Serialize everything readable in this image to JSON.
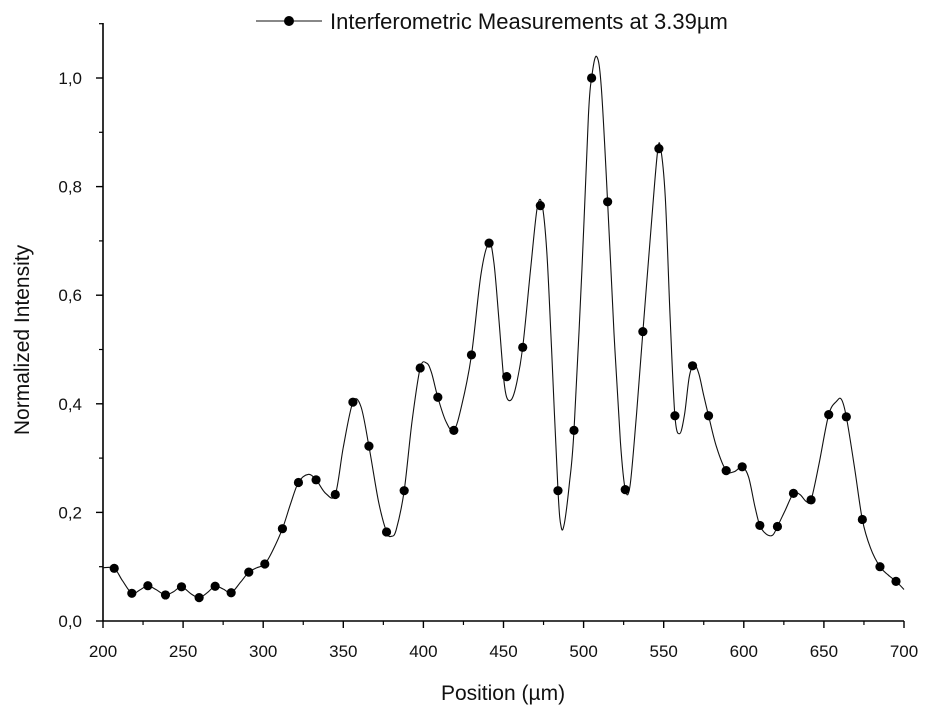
{
  "chart_data": {
    "type": "line",
    "title": "",
    "xlabel": "Position (µm)",
    "ylabel": "Normalized Intensity",
    "xlim": [
      200,
      700
    ],
    "ylim": [
      0,
      1.1
    ],
    "x_ticks": [
      200,
      250,
      300,
      350,
      400,
      450,
      500,
      550,
      600,
      650,
      700
    ],
    "x_tick_labels": [
      "200",
      "250",
      "300",
      "350",
      "400",
      "450",
      "500",
      "550",
      "600",
      "650",
      "700"
    ],
    "y_ticks": [
      0,
      0.2,
      0.4,
      0.6,
      0.8,
      1.0
    ],
    "y_tick_labels": [
      "0,0",
      "0,2",
      "0,4",
      "0,6",
      "0,8",
      "1,0"
    ],
    "grid": false,
    "legend_position": "top",
    "series": [
      {
        "name": "Interferometric Measurements at 3.39µm",
        "color": "#000000",
        "marker": "filled-circle",
        "points": [
          [
            207,
            0.097
          ],
          [
            218,
            0.051
          ],
          [
            228,
            0.065
          ],
          [
            239,
            0.048
          ],
          [
            249,
            0.063
          ],
          [
            260,
            0.043
          ],
          [
            270,
            0.064
          ],
          [
            280,
            0.052
          ],
          [
            291,
            0.09
          ],
          [
            301,
            0.105
          ],
          [
            312,
            0.17
          ],
          [
            322,
            0.255
          ],
          [
            333,
            0.26
          ],
          [
            345,
            0.233
          ],
          [
            356,
            0.403
          ],
          [
            366,
            0.322
          ],
          [
            377,
            0.164
          ],
          [
            388,
            0.24
          ],
          [
            398,
            0.466
          ],
          [
            409,
            0.412
          ],
          [
            419,
            0.351
          ],
          [
            430,
            0.49
          ],
          [
            441,
            0.696
          ],
          [
            452,
            0.45
          ],
          [
            462,
            0.504
          ],
          [
            473,
            0.765
          ],
          [
            484,
            0.24
          ],
          [
            494,
            0.351
          ],
          [
            505,
            1.0
          ],
          [
            515,
            0.772
          ],
          [
            526,
            0.242
          ],
          [
            537,
            0.533
          ],
          [
            547,
            0.87
          ],
          [
            557,
            0.378
          ],
          [
            568,
            0.47
          ],
          [
            578,
            0.378
          ],
          [
            589,
            0.277
          ],
          [
            599,
            0.284
          ],
          [
            610,
            0.176
          ],
          [
            621,
            0.174
          ],
          [
            631,
            0.235
          ],
          [
            642,
            0.223
          ],
          [
            653,
            0.38
          ],
          [
            664,
            0.376
          ],
          [
            674,
            0.187
          ],
          [
            685,
            0.1
          ],
          [
            695,
            0.073
          ]
        ]
      }
    ],
    "fit_curve": {
      "style": "thin smooth line",
      "points": [
        [
          200,
          0.098
        ],
        [
          207,
          0.097
        ],
        [
          212,
          0.075
        ],
        [
          218,
          0.051
        ],
        [
          223,
          0.057
        ],
        [
          228,
          0.065
        ],
        [
          233,
          0.058
        ],
        [
          239,
          0.048
        ],
        [
          244,
          0.054
        ],
        [
          249,
          0.063
        ],
        [
          255,
          0.05
        ],
        [
          260,
          0.043
        ],
        [
          265,
          0.052
        ],
        [
          270,
          0.064
        ],
        [
          275,
          0.059
        ],
        [
          280,
          0.052
        ],
        [
          286,
          0.072
        ],
        [
          291,
          0.09
        ],
        [
          296,
          0.098
        ],
        [
          301,
          0.105
        ],
        [
          306,
          0.13
        ],
        [
          312,
          0.17
        ],
        [
          317,
          0.215
        ],
        [
          322,
          0.255
        ],
        [
          328,
          0.27
        ],
        [
          333,
          0.26
        ],
        [
          339,
          0.235
        ],
        [
          345,
          0.233
        ],
        [
          350,
          0.32
        ],
        [
          356,
          0.403
        ],
        [
          361,
          0.395
        ],
        [
          366,
          0.322
        ],
        [
          372,
          0.22
        ],
        [
          377,
          0.164
        ],
        [
          380,
          0.156
        ],
        [
          383,
          0.168
        ],
        [
          388,
          0.24
        ],
        [
          393,
          0.37
        ],
        [
          398,
          0.466
        ],
        [
          402,
          0.475
        ],
        [
          405,
          0.458
        ],
        [
          409,
          0.412
        ],
        [
          414,
          0.368
        ],
        [
          419,
          0.351
        ],
        [
          424,
          0.398
        ],
        [
          430,
          0.49
        ],
        [
          436,
          0.64
        ],
        [
          441,
          0.696
        ],
        [
          444,
          0.66
        ],
        [
          447,
          0.56
        ],
        [
          450,
          0.45
        ],
        [
          452,
          0.412
        ],
        [
          455,
          0.408
        ],
        [
          458,
          0.435
        ],
        [
          462,
          0.504
        ],
        [
          467,
          0.65
        ],
        [
          471,
          0.76
        ],
        [
          474,
          0.768
        ],
        [
          477,
          0.68
        ],
        [
          480,
          0.5
        ],
        [
          484,
          0.24
        ],
        [
          486,
          0.173
        ],
        [
          488,
          0.18
        ],
        [
          491,
          0.25
        ],
        [
          494,
          0.351
        ],
        [
          499,
          0.65
        ],
        [
          503,
          0.93
        ],
        [
          505,
          1.0
        ],
        [
          508,
          1.04
        ],
        [
          511,
          0.985
        ],
        [
          515,
          0.772
        ],
        [
          519,
          0.53
        ],
        [
          523,
          0.33
        ],
        [
          526,
          0.242
        ],
        [
          529,
          0.25
        ],
        [
          533,
          0.38
        ],
        [
          537,
          0.533
        ],
        [
          542,
          0.72
        ],
        [
          546,
          0.86
        ],
        [
          548,
          0.872
        ],
        [
          551,
          0.78
        ],
        [
          554,
          0.56
        ],
        [
          557,
          0.378
        ],
        [
          560,
          0.345
        ],
        [
          563,
          0.38
        ],
        [
          566,
          0.45
        ],
        [
          569,
          0.472
        ],
        [
          572,
          0.455
        ],
        [
          575,
          0.415
        ],
        [
          578,
          0.378
        ],
        [
          583,
          0.32
        ],
        [
          589,
          0.277
        ],
        [
          594,
          0.275
        ],
        [
          599,
          0.284
        ],
        [
          603,
          0.265
        ],
        [
          607,
          0.21
        ],
        [
          610,
          0.176
        ],
        [
          614,
          0.16
        ],
        [
          618,
          0.158
        ],
        [
          621,
          0.174
        ],
        [
          626,
          0.205
        ],
        [
          631,
          0.235
        ],
        [
          635,
          0.233
        ],
        [
          639,
          0.22
        ],
        [
          642,
          0.223
        ],
        [
          647,
          0.29
        ],
        [
          653,
          0.38
        ],
        [
          658,
          0.405
        ],
        [
          661,
          0.408
        ],
        [
          664,
          0.376
        ],
        [
          669,
          0.285
        ],
        [
          674,
          0.187
        ],
        [
          679,
          0.135
        ],
        [
          685,
          0.1
        ],
        [
          690,
          0.085
        ],
        [
          695,
          0.073
        ],
        [
          700,
          0.058
        ]
      ]
    }
  }
}
